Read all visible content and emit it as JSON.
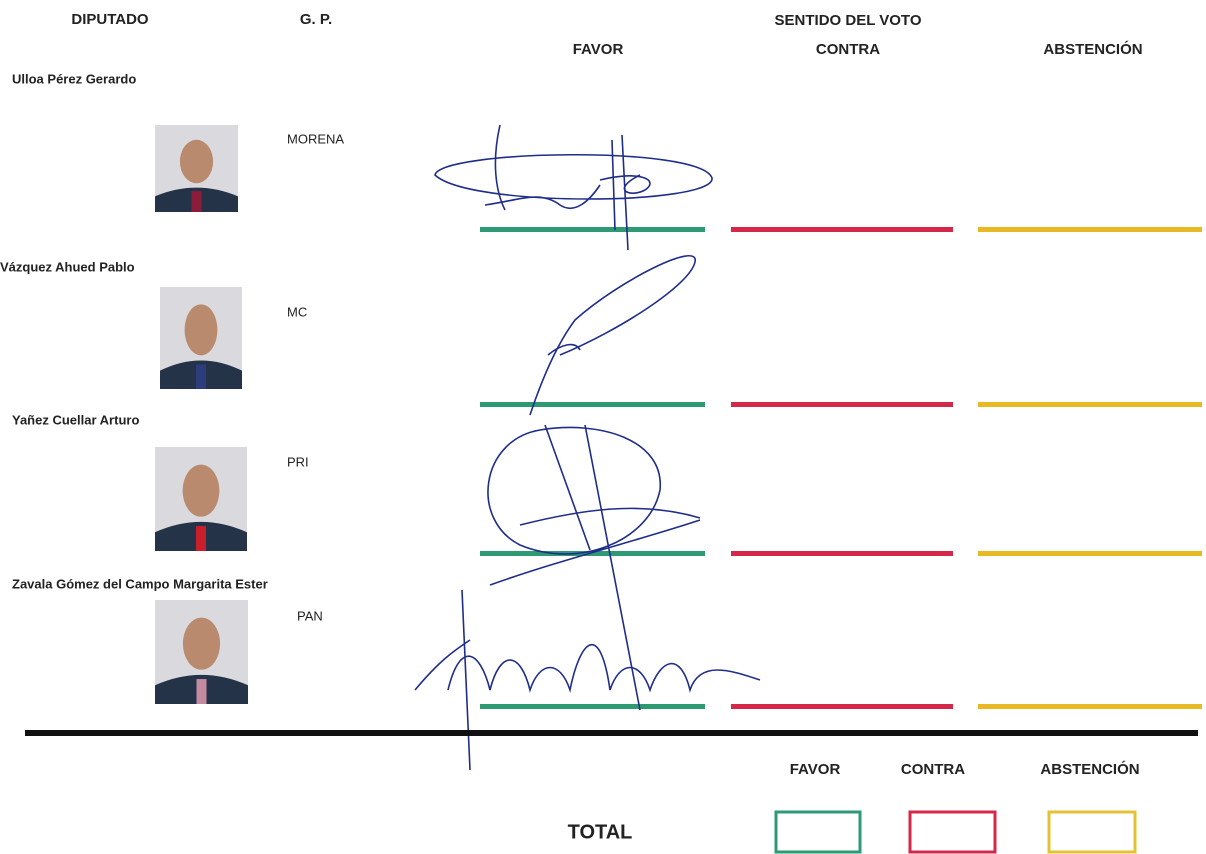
{
  "header": {
    "deputy": "DIPUTADO",
    "group": "G. P.",
    "vote": "SENTIDO DEL VOTO",
    "favor": "FAVOR",
    "against": "CONTRA",
    "abstention": "ABSTENCIÓN"
  },
  "rows": [
    {
      "name": "Ulloa Pérez Gerardo",
      "party": "MORENA"
    },
    {
      "name": "Vázquez Ahued Pablo",
      "party": "MC"
    },
    {
      "name": "Yañez Cuellar Arturo",
      "party": "PRI"
    },
    {
      "name": "Zavala Gómez del Campo Margarita Ester",
      "party": "PAN"
    }
  ],
  "totals": {
    "favor": "FAVOR",
    "against": "CONTRA",
    "abstention": "ABSTENCIÓN",
    "label": "TOTAL"
  }
}
